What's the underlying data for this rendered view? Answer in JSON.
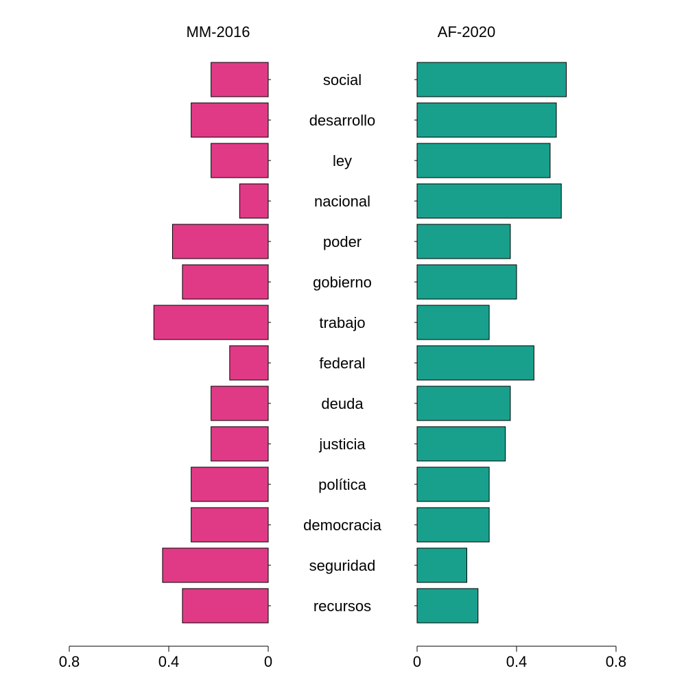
{
  "chart_data": {
    "type": "bar",
    "orientation": "horizontal",
    "layout": "back-to-back",
    "categories": [
      "social",
      "desarrollo",
      "ley",
      "nacional",
      "poder",
      "gobierno",
      "trabajo",
      "federal",
      "deuda",
      "justicia",
      "política",
      "democracia",
      "seguridad",
      "recursos"
    ],
    "series": [
      {
        "name": "MM-2016",
        "color": "#e03a86",
        "direction": "left",
        "values": [
          0.23,
          0.31,
          0.23,
          0.115,
          0.385,
          0.345,
          0.46,
          0.155,
          0.23,
          0.23,
          0.31,
          0.31,
          0.425,
          0.345
        ]
      },
      {
        "name": "AF-2020",
        "color": "#19a08d",
        "direction": "right",
        "values": [
          0.6,
          0.56,
          0.535,
          0.58,
          0.375,
          0.4,
          0.29,
          0.47,
          0.375,
          0.355,
          0.29,
          0.29,
          0.2,
          0.245
        ]
      }
    ],
    "xlim": [
      0,
      0.8
    ],
    "left_ticks": [
      "0.8",
      "0.4",
      "0"
    ],
    "right_ticks": [
      "0",
      "0.4",
      "0.8"
    ],
    "grid": false,
    "legend": "none"
  }
}
